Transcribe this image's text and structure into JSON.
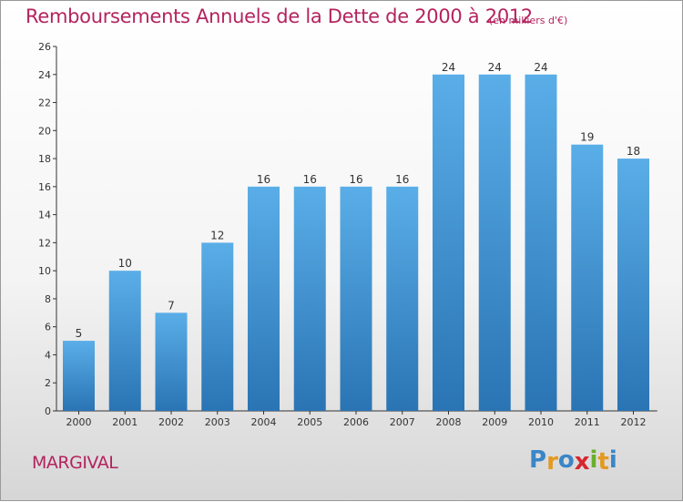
{
  "header": {
    "title": "Remboursements Annuels de la Dette de 2000 à 2012",
    "unit": "(en milliers d'€)"
  },
  "footer": {
    "commune": "MARGIVAL",
    "logo_letters": [
      "P",
      "r",
      "o",
      "x",
      "i",
      "t",
      "i"
    ],
    "logo_colors": [
      "#3a86c8",
      "#e39a1f",
      "#3a86c8",
      "#d7262e",
      "#6aae2e",
      "#e39a1f",
      "#3a86c8"
    ]
  },
  "colors": {
    "title": "#b4235e",
    "bar_top": "#5aaee8",
    "bar_bottom": "#2a74b4",
    "axis": "#333333"
  },
  "chart_data": {
    "type": "bar",
    "categories": [
      "2000",
      "2001",
      "2002",
      "2003",
      "2004",
      "2005",
      "2006",
      "2007",
      "2008",
      "2009",
      "2010",
      "2011",
      "2012"
    ],
    "values": [
      5,
      10,
      7,
      12,
      16,
      16,
      16,
      16,
      24,
      24,
      24,
      19,
      18
    ],
    "ylim": [
      0,
      26
    ],
    "yticks": [
      0,
      2,
      4,
      6,
      8,
      10,
      12,
      14,
      16,
      18,
      20,
      22,
      24,
      26
    ],
    "grid": false,
    "legend": "none"
  }
}
